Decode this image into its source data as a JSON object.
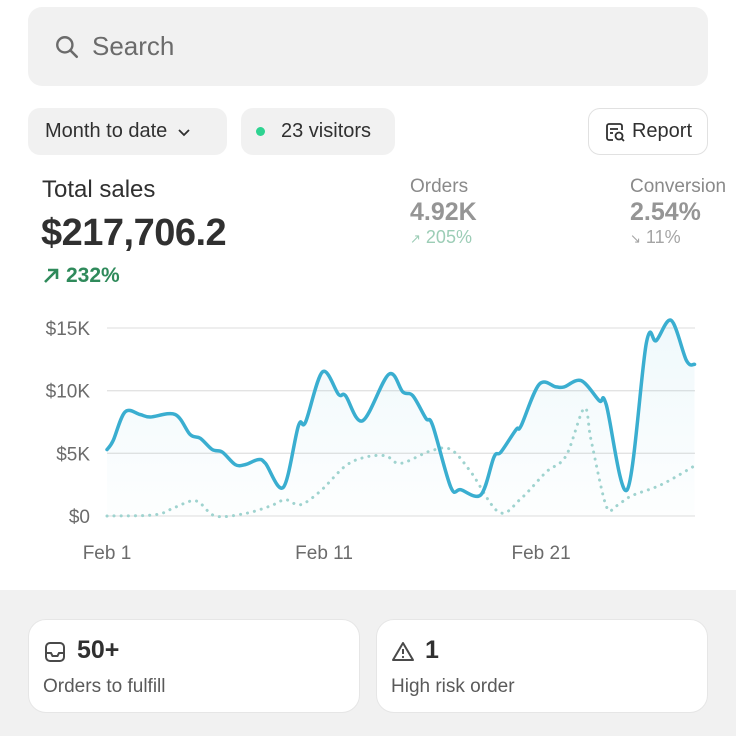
{
  "search": {
    "placeholder": "Search",
    "icon": "search-icon"
  },
  "filters": {
    "date_range": "Month to date",
    "visitors": "23 visitors",
    "visitors_dot_color": "#2ed391",
    "report_label": "Report"
  },
  "metrics": {
    "total_sales": {
      "label": "Total sales",
      "value": "$217,706.2",
      "delta": "232%",
      "direction": "up"
    },
    "orders": {
      "label": "Orders",
      "value": "4.92K",
      "delta": "205%",
      "direction": "up"
    },
    "conversion": {
      "label": "Conversion",
      "value": "2.54%",
      "delta": "11%",
      "direction": "down"
    }
  },
  "chart_data": {
    "type": "line",
    "ylim": [
      0,
      15000
    ],
    "xlim": [
      1,
      28
    ],
    "yticks": [
      {
        "value": 0,
        "label": "$0"
      },
      {
        "value": 5000,
        "label": "$5K"
      },
      {
        "value": 10000,
        "label": "$10K"
      },
      {
        "value": 15000,
        "label": "$15K"
      }
    ],
    "xticks": [
      {
        "value": 1,
        "label": "Feb 1"
      },
      {
        "value": 11,
        "label": "Feb 11"
      },
      {
        "value": 21,
        "label": "Feb 21"
      }
    ],
    "grid": true,
    "colors": {
      "current": "#3aaed0",
      "comparison": "#9fd3cf"
    },
    "series": [
      {
        "style": "solid",
        "x": [
          1.0,
          1.28,
          1.83,
          2.52,
          2.99,
          4.14,
          4.83,
          5.3,
          5.85,
          6.31,
          6.91,
          7.37,
          7.97,
          8.3,
          9.13,
          9.82,
          10.15,
          10.93,
          11.67,
          11.99,
          12.78,
          13.98,
          14.63,
          15.09,
          15.69,
          16.01,
          16.84,
          17.3,
          18.23,
          18.83,
          19.15,
          19.85,
          20.08,
          20.91,
          21.69,
          22.06,
          22.85,
          23.68,
          24.0,
          24.97,
          25.85,
          26.31,
          27.0,
          27.7,
          28.07
        ],
        "values": [
          5300,
          6000,
          8300,
          8100,
          7900,
          8100,
          6500,
          6200,
          5300,
          5100,
          4100,
          4100,
          4500,
          4200,
          2300,
          7200,
          7500,
          11500,
          9700,
          9600,
          7600,
          11300,
          9900,
          9600,
          7800,
          7200,
          2300,
          2100,
          1700,
          4700,
          5100,
          6900,
          7200,
          10500,
          10300,
          10300,
          10800,
          9200,
          8900,
          2100,
          13800,
          14000,
          15600,
          12400,
          12100
        ]
      },
      {
        "style": "dotted",
        "x": [
          1.0,
          3.22,
          4.14,
          5.11,
          5.99,
          7.37,
          8.53,
          9.22,
          9.91,
          10.84,
          11.99,
          12.92,
          13.84,
          14.53,
          15.92,
          16.84,
          17.77,
          19.06,
          20.08,
          21.23,
          22.15,
          22.99,
          23.31,
          24.0,
          24.46,
          25.16,
          26.54,
          28.07
        ],
        "values": [
          0,
          100,
          700,
          1200,
          0,
          200,
          800,
          1300,
          900,
          2000,
          4000,
          4700,
          4800,
          4200,
          5200,
          5300,
          3500,
          300,
          1400,
          3500,
          4800,
          8600,
          6000,
          800,
          800,
          1600,
          2500,
          4000
        ]
      }
    ]
  },
  "cards": [
    {
      "icon": "inbox-icon",
      "value": "50+",
      "label": "Orders to fulfill"
    },
    {
      "icon": "warning-icon",
      "value": "1",
      "label": "High risk order"
    }
  ]
}
